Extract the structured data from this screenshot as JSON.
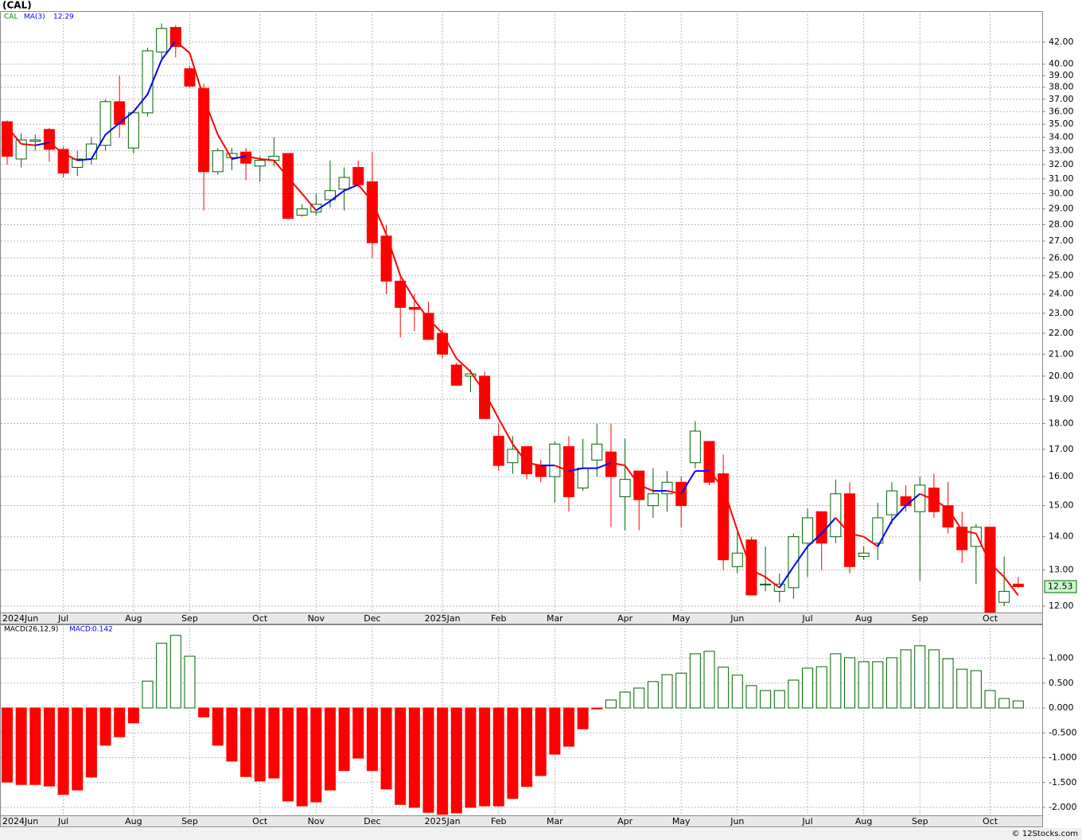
{
  "chart_data": [
    {
      "type": "candlestick",
      "title": "(CAL)",
      "legend": {
        "symbol": "CAL",
        "indicator": "MA(3)"
      },
      "categories": [
        "2024Jun",
        null,
        null,
        null,
        "Jul",
        null,
        null,
        null,
        null,
        "Aug",
        null,
        null,
        null,
        "Sep",
        null,
        null,
        null,
        null,
        "Oct",
        null,
        null,
        null,
        "Nov",
        null,
        null,
        null,
        "Dec",
        null,
        null,
        null,
        null,
        "2025Jan",
        null,
        null,
        null,
        "Feb",
        null,
        null,
        null,
        "Mar",
        null,
        null,
        null,
        null,
        "Apr",
        null,
        null,
        null,
        "May",
        null,
        null,
        null,
        "Jun",
        null,
        null,
        null,
        null,
        "Jul",
        null,
        null,
        null,
        "Aug",
        null,
        null,
        null,
        "Sep",
        null,
        null,
        null,
        null,
        "Oct",
        null,
        null
      ],
      "open": [
        35.2,
        32.4,
        33.7,
        34.6,
        33.1,
        31.8,
        32.4,
        33.4,
        36.8,
        33.2,
        35.9,
        41.1,
        43.4,
        39.6,
        37.9,
        31.5,
        32.5,
        32.9,
        31.9,
        32.3,
        32.8,
        28.6,
        28.8,
        29.6,
        30.3,
        31.8,
        30.8,
        27.3,
        24.7,
        23.3,
        23.0,
        22.0,
        20.5,
        20.0,
        20.0,
        17.5,
        16.5,
        17.1,
        16.4,
        16.0,
        17.1,
        15.6,
        16.6,
        16.9,
        15.3,
        16.2,
        15.0,
        15.4,
        15.8,
        16.5,
        17.3,
        16.1,
        13.1,
        13.9,
        12.6,
        12.4,
        12.5,
        13.8,
        14.8,
        14.0,
        15.4,
        13.4,
        13.8,
        14.7,
        15.3,
        14.8,
        15.6,
        15.0,
        14.3,
        13.7,
        14.3,
        12.1,
        12.6
      ],
      "high": [
        35.3,
        34.3,
        34.2,
        34.7,
        33.3,
        33.0,
        34.0,
        37.0,
        39.0,
        36.0,
        41.5,
        43.8,
        43.6,
        39.8,
        38.3,
        33.2,
        33.2,
        33.2,
        32.6,
        34.0,
        32.8,
        29.3,
        30.0,
        32.3,
        31.8,
        32.3,
        32.9,
        28.0,
        24.9,
        24.0,
        23.6,
        22.2,
        20.6,
        20.3,
        20.2,
        18.0,
        17.5,
        17.1,
        16.6,
        17.3,
        17.5,
        17.4,
        18.0,
        18.0,
        17.4,
        16.2,
        16.3,
        16.2,
        16.0,
        18.1,
        17.3,
        16.8,
        14.2,
        14.0,
        13.7,
        12.9,
        14.1,
        14.9,
        14.8,
        15.9,
        15.8,
        13.7,
        15.1,
        15.8,
        15.7,
        16.0,
        16.1,
        15.8,
        14.8,
        14.4,
        14.3,
        13.4,
        12.8
      ],
      "low": [
        32.0,
        31.8,
        33.0,
        32.2,
        31.1,
        31.2,
        32.0,
        33.0,
        34.0,
        32.8,
        35.6,
        40.5,
        40.6,
        38.0,
        28.9,
        31.3,
        31.6,
        30.9,
        30.8,
        31.9,
        28.3,
        28.5,
        28.6,
        29.1,
        28.9,
        30.4,
        26.0,
        24.0,
        21.8,
        22.1,
        21.7,
        20.8,
        19.6,
        19.3,
        18.2,
        16.2,
        16.1,
        15.9,
        15.8,
        15.1,
        14.8,
        15.5,
        16.0,
        14.3,
        14.2,
        14.2,
        14.6,
        14.8,
        14.3,
        16.3,
        15.7,
        13.0,
        12.9,
        12.3,
        12.4,
        12.1,
        12.2,
        12.8,
        13.0,
        13.8,
        12.9,
        13.3,
        13.3,
        14.4,
        14.8,
        12.7,
        14.6,
        14.1,
        13.2,
        12.6,
        11.7,
        12.0,
        12.5
      ],
      "close": [
        32.6,
        33.8,
        33.8,
        33.1,
        31.4,
        32.4,
        33.5,
        36.8,
        35.0,
        35.9,
        41.2,
        43.3,
        41.6,
        38.1,
        31.5,
        33.0,
        32.8,
        32.1,
        32.3,
        32.6,
        28.4,
        29.0,
        29.3,
        30.2,
        31.1,
        30.6,
        26.9,
        24.7,
        23.3,
        23.2,
        21.7,
        21.0,
        19.6,
        20.1,
        18.2,
        16.4,
        17.0,
        16.1,
        16.0,
        17.2,
        15.3,
        16.3,
        17.2,
        16.0,
        15.9,
        15.2,
        15.4,
        15.8,
        15.0,
        17.7,
        15.8,
        13.3,
        13.5,
        12.3,
        12.6,
        12.6,
        14.0,
        14.6,
        13.8,
        15.4,
        13.1,
        13.5,
        14.6,
        15.5,
        15.0,
        15.7,
        14.8,
        14.3,
        13.6,
        14.3,
        11.8,
        12.4,
        12.53
      ],
      "ma": {
        "name": "MA(3)",
        "up_color": "#0000ff",
        "down_color": "#ff0000",
        "values": [
          34.8,
          33.5,
          33.4,
          33.6,
          32.8,
          32.3,
          32.4,
          34.2,
          35.1,
          36.0,
          37.4,
          40.4,
          42.1,
          41.0,
          37.1,
          34.2,
          32.4,
          32.6,
          32.4,
          32.3,
          31.1,
          30.0,
          28.9,
          29.5,
          30.2,
          30.6,
          29.5,
          27.4,
          25.0,
          23.7,
          22.7,
          22.0,
          20.8,
          20.2,
          19.3,
          18.2,
          17.2,
          16.5,
          16.4,
          16.4,
          16.2,
          16.3,
          16.3,
          16.5,
          16.4,
          15.7,
          15.5,
          15.5,
          15.4,
          16.2,
          16.2,
          15.6,
          14.2,
          13.0,
          12.8,
          12.5,
          13.1,
          13.7,
          14.1,
          14.6,
          14.1,
          14.0,
          13.7,
          14.5,
          15.0,
          15.4,
          15.2,
          14.9,
          14.2,
          14.1,
          13.2,
          12.8,
          12.29
        ]
      },
      "up_color": "#006400",
      "down_color": "#ff0000",
      "log_scale": true,
      "grid": true,
      "ylim": [
        11.83,
        45.0
      ],
      "yticks": [
        {
          "value": 12,
          "label": "12.00"
        },
        {
          "value": 13,
          "label": "13.00"
        },
        {
          "value": 14,
          "label": "14.00"
        },
        {
          "value": 15,
          "label": "15.00"
        },
        {
          "value": 16,
          "label": "16.00"
        },
        {
          "value": 17,
          "label": "17.00"
        },
        {
          "value": 18,
          "label": "18.00"
        },
        {
          "value": 19,
          "label": "19.00"
        },
        {
          "value": 20,
          "label": "20.00"
        },
        {
          "value": 21,
          "label": "21.00"
        },
        {
          "value": 22,
          "label": "22.00"
        },
        {
          "value": 23,
          "label": "23.00"
        },
        {
          "value": 24,
          "label": "24.00"
        },
        {
          "value": 25,
          "label": "25.00"
        },
        {
          "value": 26,
          "label": "26.00"
        },
        {
          "value": 27,
          "label": "27.00"
        },
        {
          "value": 28,
          "label": "28.00"
        },
        {
          "value": 29,
          "label": "29.00"
        },
        {
          "value": 30,
          "label": "30.00"
        },
        {
          "value": 31,
          "label": "31.00"
        },
        {
          "value": 32,
          "label": "32.00"
        },
        {
          "value": 33,
          "label": "33.00"
        },
        {
          "value": 34,
          "label": "34.00"
        },
        {
          "value": 35,
          "label": "35.00"
        },
        {
          "value": 36,
          "label": "36.00"
        },
        {
          "value": 37,
          "label": "37.00"
        },
        {
          "value": 38,
          "label": "38.00"
        },
        {
          "value": 39,
          "label": "39.00"
        },
        {
          "value": 40,
          "label": "40.00"
        },
        {
          "value": 42,
          "label": "42.00"
        }
      ]
    },
    {
      "type": "bar",
      "title": "MACD(26,12,9)",
      "value_name": "MACD:",
      "categories": [
        "2024Jun",
        null,
        null,
        null,
        "Jul",
        null,
        null,
        null,
        null,
        "Aug",
        null,
        null,
        null,
        "Sep",
        null,
        null,
        null,
        null,
        "Oct",
        null,
        null,
        null,
        "Nov",
        null,
        null,
        null,
        "Dec",
        null,
        null,
        null,
        null,
        "2025Jan",
        null,
        null,
        null,
        "Feb",
        null,
        null,
        null,
        "Mar",
        null,
        null,
        null,
        null,
        "Apr",
        null,
        null,
        null,
        "May",
        null,
        null,
        null,
        "Jun",
        null,
        null,
        null,
        null,
        "Jul",
        null,
        null,
        null,
        "Aug",
        null,
        null,
        null,
        "Sep",
        null,
        null,
        null,
        null,
        "Oct",
        null,
        null
      ],
      "values": [
        -1.49,
        -1.54,
        -1.54,
        -1.57,
        -1.74,
        -1.65,
        -1.39,
        -0.75,
        -0.58,
        -0.3,
        0.54,
        1.3,
        1.46,
        1.04,
        -0.18,
        -0.75,
        -1.07,
        -1.38,
        -1.47,
        -1.41,
        -1.87,
        -1.97,
        -1.89,
        -1.65,
        -1.26,
        -1.01,
        -1.26,
        -1.63,
        -1.94,
        -2.0,
        -2.1,
        -2.14,
        -2.11,
        -2.0,
        -1.97,
        -1.97,
        -1.82,
        -1.58,
        -1.36,
        -0.93,
        -0.77,
        -0.42,
        -0.02,
        0.16,
        0.32,
        0.4,
        0.53,
        0.67,
        0.7,
        1.09,
        1.14,
        0.82,
        0.66,
        0.45,
        0.35,
        0.35,
        0.56,
        0.8,
        0.83,
        1.09,
        1.01,
        0.93,
        0.93,
        1.01,
        1.17,
        1.25,
        1.17,
        0.99,
        0.78,
        0.75,
        0.35,
        0.19,
        0.142
      ],
      "positive_color": "#006400",
      "negative_color": "#ff0000",
      "grid": true,
      "ylim": [
        -2.16,
        1.68
      ],
      "yticks": [
        {
          "value": 1,
          "label": "1.000"
        },
        {
          "value": 0.5,
          "label": "0.500"
        },
        {
          "value": 0,
          "label": "0.000"
        },
        {
          "value": -0.5,
          "label": "-0.500"
        },
        {
          "value": -1,
          "label": "-1.000"
        },
        {
          "value": -1.5,
          "label": "-1.500"
        },
        {
          "value": -2,
          "label": "-2.000"
        }
      ]
    }
  ],
  "footer": "© 12Stocks.com"
}
